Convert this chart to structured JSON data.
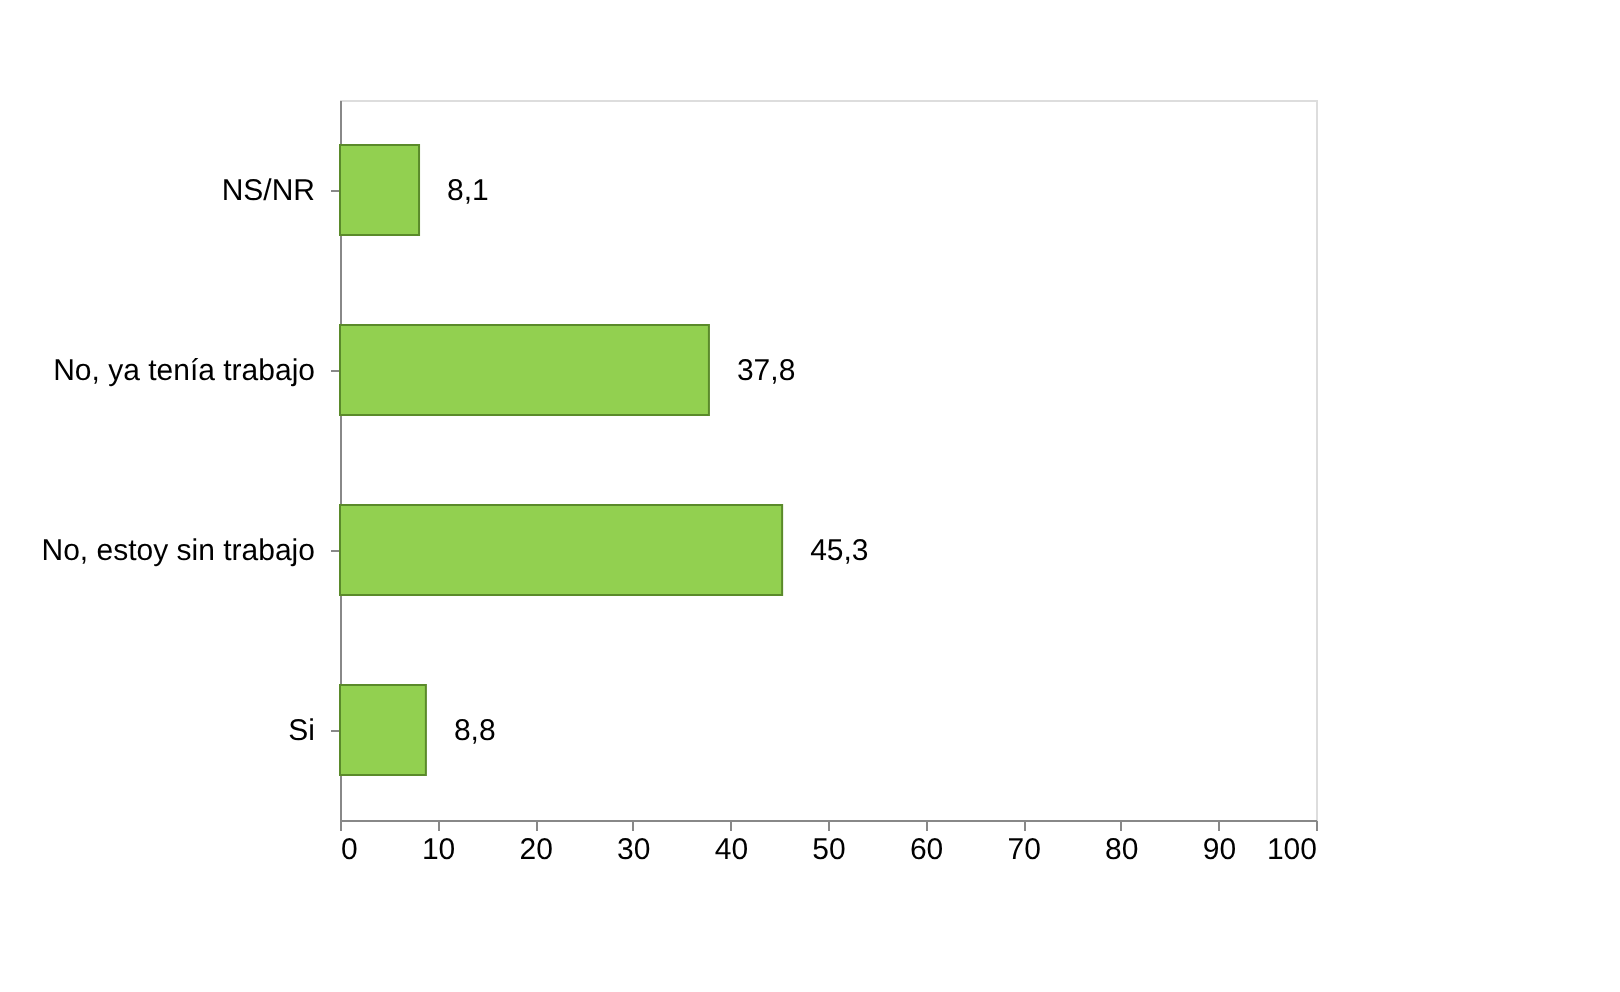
{
  "chart_data": {
    "type": "bar",
    "orientation": "horizontal",
    "categories": [
      "NS/NR",
      "No, ya tenía trabajo",
      "No, estoy sin trabajo",
      "Si"
    ],
    "values": [
      8.1,
      37.8,
      45.3,
      8.8
    ],
    "value_labels": [
      "8,1",
      "37,8",
      "45,3",
      "8,8"
    ],
    "color": "#92d050",
    "xlim": [
      0,
      100
    ],
    "xticks": [
      0,
      10,
      20,
      30,
      40,
      50,
      60,
      70,
      80,
      90,
      100
    ],
    "grid": false
  }
}
